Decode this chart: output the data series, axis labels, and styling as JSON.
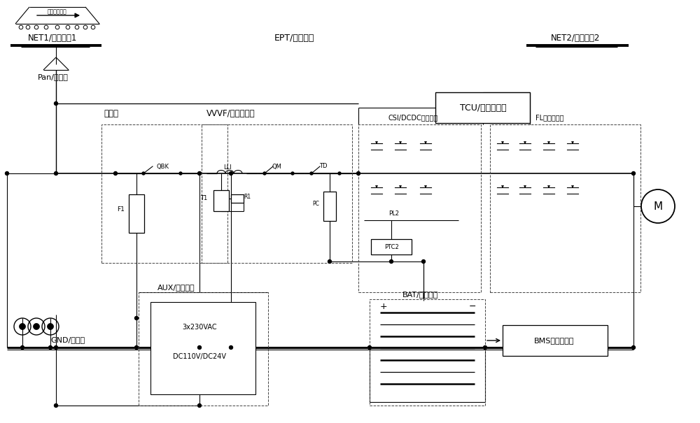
{
  "bg": "#ffffff",
  "labels": {
    "net1": "NET1/电网区间1",
    "ept": "EPT/无网区间",
    "net2": "NET2/电网区间2",
    "pan": "Pan/受电弓",
    "gnd": "GND/回流轨",
    "hvbox": "高压笱",
    "vvvf": "VVVF/產引变流器",
    "tcu": "TCU/產引控制器",
    "aux": "AUX/辅助电源",
    "bat": "BAT/车载储能",
    "bms": "BMS储能控制器",
    "direction": "网车运行方向",
    "aux_ac": "3x230VAC",
    "aux_dc": "DC110V/DC24V",
    "csi": "CSI/DCDC控制模组",
    "fl": "FL逆变器模组",
    "motor": "M"
  }
}
